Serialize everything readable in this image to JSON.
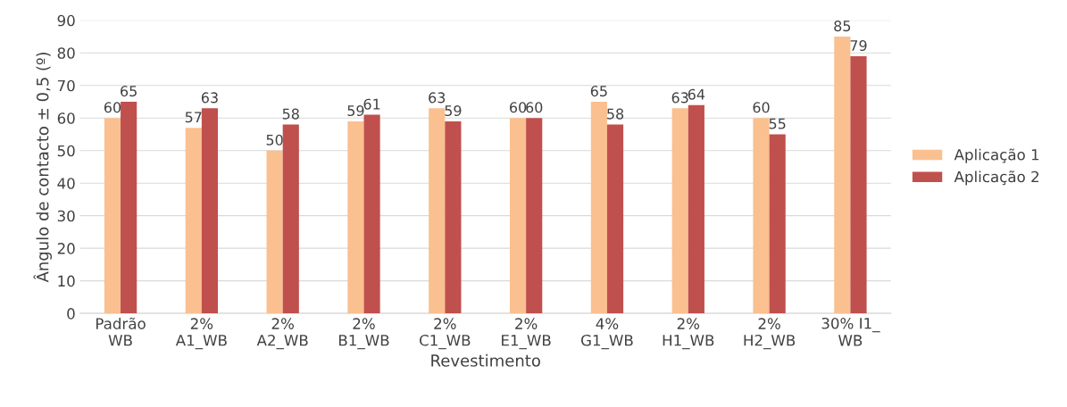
{
  "chart_data": {
    "type": "bar",
    "xlabel": "Revestimento",
    "ylabel": "Ângulo de contacto ± 0,5 (º)",
    "categories": [
      "Padrão\nWB",
      "2%\nA1_WB",
      "2%\nA2_WB",
      "2%\nB1_WB",
      "2%\nC1_WB",
      "2%\nE1_WB",
      "4%\nG1_WB",
      "2%\nH1_WB",
      "2%\nH2_WB",
      "30% I1_\nWB"
    ],
    "series": [
      {
        "name": "Aplicação 1",
        "color": "#fac090",
        "values": [
          60,
          57,
          50,
          59,
          63,
          60,
          65,
          63,
          60,
          85
        ]
      },
      {
        "name": "Aplicação 2",
        "color": "#c0504d",
        "values": [
          65,
          63,
          58,
          61,
          59,
          60,
          58,
          64,
          55,
          79
        ]
      }
    ],
    "ylim": [
      0,
      90
    ],
    "yticks": [
      0,
      10,
      20,
      30,
      40,
      50,
      60,
      70,
      80,
      90
    ],
    "grid": "y",
    "legend": "right",
    "data_labels": true
  }
}
